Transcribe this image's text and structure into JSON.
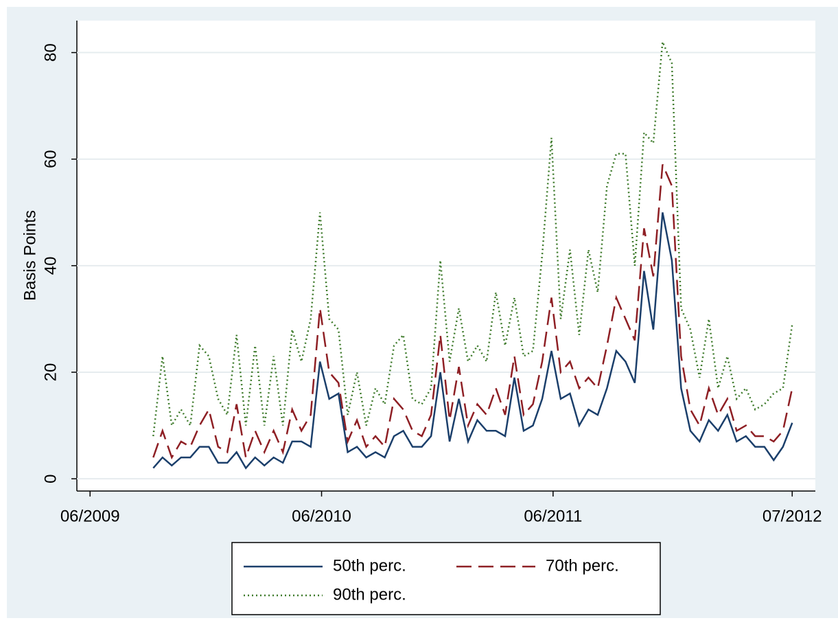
{
  "chart_data": {
    "type": "line",
    "y_label": "Basis Points",
    "x": [
      2009.69,
      2009.73,
      2009.77,
      2009.81,
      2009.85,
      2009.89,
      2009.93,
      2009.97,
      2010.01,
      2010.05,
      2010.09,
      2010.13,
      2010.17,
      2010.21,
      2010.25,
      2010.29,
      2010.33,
      2010.37,
      2010.41,
      2010.45,
      2010.49,
      2010.53,
      2010.57,
      2010.61,
      2010.65,
      2010.69,
      2010.73,
      2010.77,
      2010.81,
      2010.85,
      2010.89,
      2010.93,
      2010.97,
      2011.01,
      2011.05,
      2011.09,
      2011.13,
      2011.17,
      2011.21,
      2011.25,
      2011.29,
      2011.33,
      2011.37,
      2011.41,
      2011.45,
      2011.49,
      2011.53,
      2011.57,
      2011.61,
      2011.65,
      2011.69,
      2011.73,
      2011.77,
      2011.81,
      2011.85,
      2011.89,
      2011.93,
      2011.97,
      2012.01,
      2012.05,
      2012.09,
      2012.13,
      2012.17,
      2012.21,
      2012.25,
      2012.29,
      2012.33,
      2012.37,
      2012.41,
      2012.45
    ],
    "series": [
      {
        "name": "50th perc.",
        "color": "#1b3f6b",
        "dash": "solid",
        "values": [
          2,
          4,
          2.5,
          4,
          4,
          6,
          6,
          3,
          3,
          5,
          2,
          4,
          2.5,
          4,
          3,
          7,
          7,
          6,
          22,
          15,
          16,
          5,
          6,
          4,
          5,
          4,
          8,
          9,
          6,
          6,
          8,
          20,
          7,
          15,
          7,
          11,
          9,
          9,
          8,
          19,
          9,
          10,
          15,
          24,
          15,
          16,
          10,
          13,
          12,
          17,
          24,
          22,
          18,
          39,
          28,
          50,
          41,
          17,
          9,
          7,
          11,
          9,
          12,
          7,
          8,
          6,
          6,
          3.5,
          6,
          10.5
        ]
      },
      {
        "name": "70th perc.",
        "color": "#8e1f24",
        "dash": "dashed",
        "values": [
          4,
          9,
          4,
          7,
          6,
          10,
          13,
          6,
          5,
          14,
          4,
          9,
          5,
          9,
          5,
          13,
          9,
          12,
          32,
          20,
          18,
          7,
          11,
          6,
          8,
          6,
          15,
          13,
          9,
          8,
          12,
          27,
          11,
          21,
          10,
          14,
          12,
          17,
          12,
          23,
          12,
          14,
          22,
          34,
          20,
          22,
          17,
          19,
          17,
          25,
          34,
          30,
          26,
          47,
          38,
          59,
          55,
          23,
          13,
          10,
          17,
          12,
          15,
          9,
          10,
          8,
          8,
          7,
          9,
          17
        ]
      },
      {
        "name": "90th perc.",
        "color": "#3d7a2a",
        "dash": "dotted",
        "values": [
          8,
          23,
          10,
          13,
          10,
          25,
          23,
          15,
          12,
          27,
          10,
          25,
          10,
          23,
          10,
          28,
          22,
          30,
          50,
          30,
          28,
          12,
          20,
          10,
          17,
          14,
          25,
          27,
          15,
          14,
          17,
          41,
          22,
          32,
          22,
          25,
          22,
          35,
          25,
          34,
          23,
          24,
          42,
          64,
          30,
          43,
          27,
          43,
          35,
          55,
          61,
          61,
          40,
          65,
          63,
          82,
          78,
          32,
          28,
          19,
          30,
          17,
          23,
          15,
          17,
          13,
          14,
          16,
          17,
          29
        ]
      }
    ],
    "xlim": [
      2009.36,
      2012.55
    ],
    "xticks": [
      {
        "value": 2009.417,
        "label": "06/2009"
      },
      {
        "value": 2010.417,
        "label": "06/2010"
      },
      {
        "value": 2011.417,
        "label": "06/2011"
      },
      {
        "value": 2012.45,
        "label": "07/2012"
      }
    ],
    "ylim": [
      -2.3,
      86
    ],
    "yticks": [
      0,
      20,
      40,
      60,
      80
    ],
    "grid": true,
    "legend": "bottom"
  }
}
